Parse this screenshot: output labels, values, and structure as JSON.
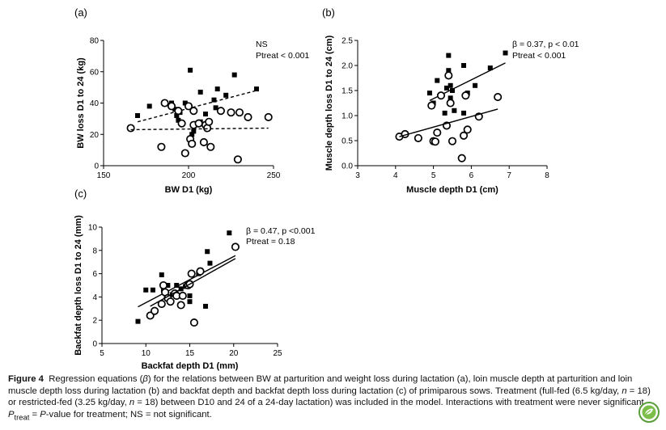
{
  "chart_data": [
    {
      "panel_label": "(a)",
      "type": "scatter",
      "xlabel": "BW D1 (kg)",
      "ylabel": "BW loss D1 to 24 (kg)",
      "xlim": [
        150,
        250
      ],
      "ylim": [
        0,
        80
      ],
      "xticks": [
        150,
        200,
        250
      ],
      "yticks": [
        0,
        20,
        40,
        60,
        80
      ],
      "annotations": [
        "NS",
        "Ptreat < 0.001"
      ],
      "series": [
        {
          "marker": "filled-square",
          "x": [
            170,
            177,
            190,
            192,
            193,
            194,
            195,
            198,
            201,
            202,
            203,
            205,
            207,
            207,
            210,
            215,
            216,
            217,
            222,
            227,
            240
          ],
          "y": [
            32,
            38,
            40,
            36,
            32,
            29,
            34,
            40,
            61,
            20,
            22,
            27,
            28,
            47,
            33,
            42,
            37,
            49,
            45,
            58,
            49
          ],
          "trend": {
            "x": [
              170,
              240
            ],
            "y": [
              28,
              48
            ],
            "style": "dashed"
          }
        },
        {
          "marker": "open-circle",
          "x": [
            166,
            184,
            186,
            190,
            194,
            196,
            198,
            200,
            201,
            202,
            203,
            203,
            206,
            209,
            210,
            211,
            212,
            213,
            219,
            225,
            229,
            230,
            235,
            247
          ],
          "y": [
            24,
            12,
            40,
            38,
            35,
            27,
            8,
            38,
            17,
            14,
            26,
            35,
            27,
            15,
            26,
            24,
            28,
            12,
            35,
            34,
            4,
            34,
            31,
            31
          ],
          "trend": {
            "x": [
              166,
              247
            ],
            "y": [
              23,
              24
            ],
            "style": "dashed"
          }
        }
      ]
    },
    {
      "panel_label": "(b)",
      "type": "scatter",
      "xlabel": "Muscle depth D1 (cm)",
      "ylabel": "Muscle depth loss D1 to 24 (cm)",
      "xlim": [
        3,
        8
      ],
      "ylim": [
        0,
        2.5
      ],
      "xticks": [
        3,
        4,
        5,
        6,
        7,
        8
      ],
      "yticks": [
        "0.0",
        "0.5",
        "1.0",
        "1.5",
        "2.0",
        "2.5"
      ],
      "annotations": [
        "β = 0.37, p < 0.01",
        "Ptreat < 0.001"
      ],
      "series": [
        {
          "marker": "filled-square",
          "x": [
            4.9,
            5.0,
            5.1,
            5.3,
            5.35,
            5.4,
            5.4,
            5.45,
            5.45,
            5.5,
            5.55,
            5.8,
            5.8,
            5.9,
            6.1,
            6.5,
            6.9
          ],
          "y": [
            1.45,
            1.25,
            1.7,
            1.05,
            1.55,
            2.2,
            1.9,
            1.6,
            1.35,
            1.5,
            1.1,
            2.0,
            1.05,
            1.45,
            1.6,
            1.95,
            2.25
          ],
          "trend": {
            "x": [
              4.9,
              6.9
            ],
            "y": [
              1.3,
              2.05
            ],
            "style": "solid"
          }
        },
        {
          "marker": "open-circle",
          "x": [
            4.1,
            4.25,
            4.6,
            4.95,
            5.0,
            5.05,
            5.1,
            5.2,
            5.35,
            5.4,
            5.45,
            5.5,
            5.75,
            5.8,
            5.85,
            5.9,
            6.2,
            6.7
          ],
          "y": [
            0.58,
            0.63,
            0.55,
            1.2,
            0.49,
            0.48,
            0.66,
            1.4,
            0.8,
            1.8,
            1.25,
            0.49,
            0.15,
            0.6,
            1.4,
            0.72,
            0.98,
            1.37
          ],
          "trend": {
            "x": [
              4.1,
              6.7
            ],
            "y": [
              0.58,
              1.13
            ],
            "style": "solid"
          }
        }
      ]
    },
    {
      "panel_label": "(c)",
      "type": "scatter",
      "xlabel": "Backfat depth D1 (mm)",
      "ylabel": "Backfat depth loss D1 to 24 (mm)",
      "xlim": [
        5,
        25
      ],
      "ylim": [
        0,
        10
      ],
      "xticks": [
        5,
        10,
        15,
        20,
        25
      ],
      "yticks": [
        0,
        2,
        4,
        6,
        8,
        10
      ],
      "annotations": [
        "β = 0.47, p <0.001",
        "Ptreat = 0.18"
      ],
      "series": [
        {
          "marker": "filled-square",
          "x": [
            9.1,
            10.0,
            10.8,
            11.8,
            12.0,
            12.5,
            13.0,
            13.5,
            14.0,
            14.5,
            15.0,
            15.0,
            16.0,
            16.2,
            16.8,
            17.0,
            17.3,
            19.5
          ],
          "y": [
            1.9,
            4.6,
            4.6,
            5.9,
            4.6,
            5.0,
            4.2,
            5.0,
            4.7,
            4.9,
            4.1,
            3.6,
            6.0,
            6.3,
            3.2,
            7.9,
            6.9,
            9.5
          ],
          "trend": {
            "x": [
              9.1,
              20.2
            ],
            "y": [
              3.15,
              7.55
            ],
            "style": "solid"
          }
        },
        {
          "marker": "open-circle",
          "x": [
            10.5,
            11.0,
            11.8,
            12.0,
            12.2,
            12.5,
            12.8,
            13.3,
            13.5,
            14.0,
            14.2,
            14.8,
            15.0,
            15.2,
            15.5,
            16.2,
            20.2
          ],
          "y": [
            2.4,
            2.8,
            3.4,
            5.0,
            4.4,
            3.9,
            3.6,
            4.3,
            4.1,
            3.3,
            4.1,
            5.0,
            5.1,
            6.0,
            1.8,
            6.2,
            8.3
          ],
          "trend": {
            "x": [
              10.5,
              20.2
            ],
            "y": [
              3.2,
              7.3
            ],
            "style": "solid"
          }
        }
      ]
    }
  ],
  "caption": {
    "label": "Figure 4",
    "t1": "Regression equations (",
    "beta": "β",
    "t2": ") for the relations between BW at parturition and weight loss during lactation (a), loin muscle depth at parturition and loin muscle depth loss during lactation (b) and backfat depth and backfat depth loss during lactation (c) of primiparous sows. Treatment (full-fed (6.5 kg/day, ",
    "n1": "n",
    "t3": " = 18) or restricted-fed (3.25 kg/day, ",
    "n2": "n",
    "t4": " = 18) between D10 and 24 of a 24-day lactation) was included in the model. Interactions with treatment were never significant. ",
    "p_main": "P",
    "p_sub": "treat",
    "t5": " = ",
    "p_value": "P",
    "t6": "-value for treatment; NS = not significant."
  },
  "logo": {
    "icon": "leaf-logo-icon",
    "color": "#5a9e3a"
  }
}
